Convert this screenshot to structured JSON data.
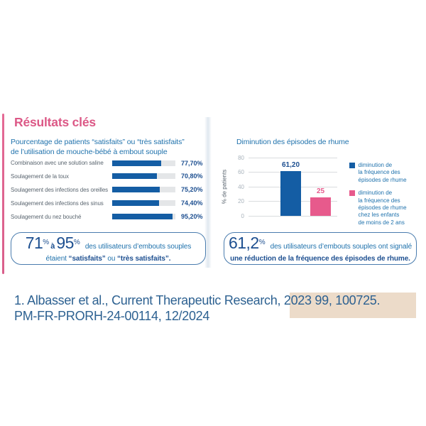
{
  "colors": {
    "pink": "#e0608f",
    "title_pink": "#dc5886",
    "blue_bar": "#145da4",
    "pink_bar": "#e75a8c",
    "body_blue": "#2173ad",
    "navy": "#1d4f90",
    "label_gray": "#5b6670",
    "tick_gray": "#a9b3bc",
    "grid_gray": "#d9dcde",
    "box_border": "#4a7cae",
    "footer_blue": "#2d6191",
    "beige": "#ecdbc9",
    "track_gray": "#e4e6e8"
  },
  "left_panel": {
    "title": "Résultats clés",
    "subtitle_line1": "Pourcentage de patients “satisfaits” ou “très satisfaits”",
    "subtitle_line2": "de l’utilisation de mouche-bébé à embout souple",
    "callout": {
      "big1": "71",
      "sup1": "%",
      "connector": "à",
      "big2": "95",
      "sup2": "%",
      "tail": "des utilisateurs d’embouts souples",
      "line2_pre": "étaient ",
      "line2_bold1": "“satisfaits”",
      "line2_mid": " ou ",
      "line2_bold2": "“très satisfaits”."
    }
  },
  "right_panel": {
    "title": "Diminution des épisodes de rhume",
    "ylabel": "% de patients",
    "legend": [
      {
        "color": "#145da4",
        "lines": [
          "diminution de",
          "la fréquence des",
          "épisodes de rhume"
        ]
      },
      {
        "color": "#e75a8c",
        "lines": [
          "diminution de",
          "la fréquence des",
          "épisodes de rhume",
          "chez les enfants",
          "de moins de 2 ans"
        ]
      }
    ],
    "callout": {
      "big": "61,2",
      "sup": "%",
      "tail": "des utilisateurs d’embouts souples ont signalé",
      "line2": "une réduction de la fréquence des épisodes de rhume."
    }
  },
  "footer": {
    "line1": "1. Albasser et al., Current Therapeutic Research, 2023 99, 100725.",
    "line2": "PM-FR-PRORH-24-00114, 12/2024"
  },
  "chart_data": [
    {
      "type": "bar",
      "orientation": "horizontal",
      "title": "Pourcentage de patients “satisfaits” ou “très satisfaits” de l’utilisation de mouche-bébé à embout souple",
      "categories": [
        "Combinaison avec une solution saline",
        "Soulagement de la toux",
        "Soulagement des infections des oreilles",
        "Soulagement des infections des sinus",
        "Soulagement du nez bouché"
      ],
      "values": [
        77.7,
        70.8,
        75.2,
        74.4,
        95.2
      ],
      "value_labels": [
        "77,70%",
        "70,80%",
        "75,20%",
        "74,40%",
        "95,20%"
      ],
      "xlim": [
        0,
        100
      ],
      "grid": false,
      "bar_color": "#145da4"
    },
    {
      "type": "bar",
      "orientation": "vertical",
      "title": "Diminution des épisodes de rhume",
      "ylabel": "% de patients",
      "ylim": [
        0,
        80
      ],
      "yticks": [
        0,
        20,
        40,
        60,
        80
      ],
      "grid": true,
      "legend_position": "right",
      "series": [
        {
          "name": "diminution de la fréquence des épisodes de rhume",
          "values": [
            61.2
          ],
          "value_label": "61,20",
          "color": "#145da4"
        },
        {
          "name": "diminution de la fréquence des épisodes de rhume chez les enfants de moins de 2 ans",
          "values": [
            25
          ],
          "value_label": "25",
          "color": "#e75a8c"
        }
      ]
    }
  ]
}
